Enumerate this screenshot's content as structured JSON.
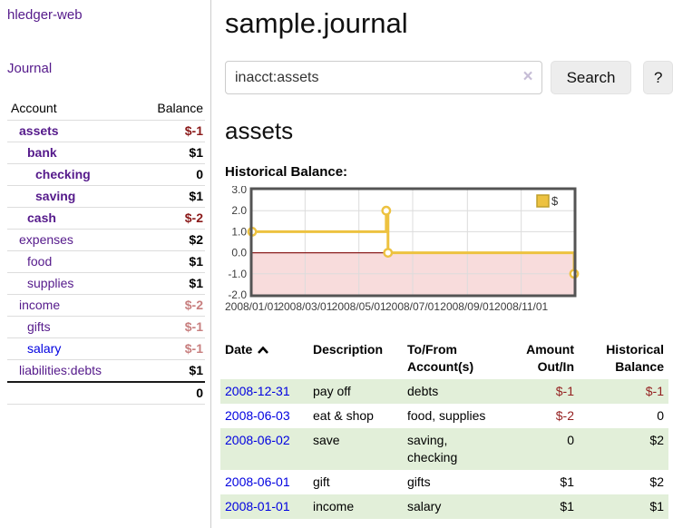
{
  "sidebar": {
    "app_title": "hledger-web",
    "nav_journal": "Journal",
    "accounts": {
      "headers": [
        "Account",
        "Balance"
      ],
      "rows": [
        {
          "name": "assets",
          "balance": "$-1",
          "indent": 0,
          "matched": true,
          "balance_style": "neg-strong",
          "link_style": "purple"
        },
        {
          "name": "bank",
          "balance": "$1",
          "indent": 1,
          "matched": true,
          "balance_style": "",
          "link_style": "purple"
        },
        {
          "name": "checking",
          "balance": "0",
          "indent": 2,
          "matched": true,
          "balance_style": "",
          "link_style": "purple"
        },
        {
          "name": "saving",
          "balance": "$1",
          "indent": 2,
          "matched": true,
          "balance_style": "",
          "link_style": "purple"
        },
        {
          "name": "cash",
          "balance": "$-2",
          "indent": 1,
          "matched": true,
          "balance_style": "neg-strong",
          "link_style": "purple"
        },
        {
          "name": "expenses",
          "balance": "$2",
          "indent": 0,
          "matched": false,
          "balance_style": "",
          "link_style": "purple"
        },
        {
          "name": "food",
          "balance": "$1",
          "indent": 1,
          "matched": false,
          "balance_style": "",
          "link_style": "purple"
        },
        {
          "name": "supplies",
          "balance": "$1",
          "indent": 1,
          "matched": false,
          "balance_style": "",
          "link_style": "purple"
        },
        {
          "name": "income",
          "balance": "$-2",
          "indent": 0,
          "matched": false,
          "balance_style": "neg-faded",
          "link_style": "purple"
        },
        {
          "name": "gifts",
          "balance": "$-1",
          "indent": 1,
          "matched": false,
          "balance_style": "neg-faded",
          "link_style": "purple"
        },
        {
          "name": "salary",
          "balance": "$-1",
          "indent": 1,
          "matched": false,
          "balance_style": "neg-faded",
          "link_style": "blue"
        },
        {
          "name": "liabilities:debts",
          "balance": "$1",
          "indent": 0,
          "matched": false,
          "balance_style": "",
          "link_style": "purple"
        }
      ],
      "total": "0"
    }
  },
  "header": {
    "title": "sample.journal"
  },
  "search": {
    "value": "inacct:assets",
    "clear_icon": "×",
    "button_label": "Search",
    "help_label": "?"
  },
  "account_page": {
    "heading": "assets",
    "chart_label": "Historical Balance:"
  },
  "chart_data": {
    "type": "line",
    "step": true,
    "title": "Historical Balance",
    "legend": {
      "label": "$",
      "position": "top-right"
    },
    "x_range": [
      "2008-01-01",
      "2008-12-31"
    ],
    "ylim": [
      -2.0,
      3.0
    ],
    "yticks": [
      "3.0",
      "2.0",
      "1.0",
      "0.0",
      "-1.0",
      "-2.0"
    ],
    "xticks": [
      {
        "label": "2008/01/01",
        "date": "2008-01-01"
      },
      {
        "label": "2008/03/01",
        "date": "2008-03-01"
      },
      {
        "label": "2008/05/01",
        "date": "2008-05-01"
      },
      {
        "label": "2008/07/01",
        "date": "2008-07-01"
      },
      {
        "label": "2008/09/01",
        "date": "2008-09-01"
      },
      {
        "label": "2008/11/01",
        "date": "2008-11-01"
      }
    ],
    "series": [
      {
        "name": "$",
        "color": "#edc240",
        "points": [
          {
            "date": "2008-01-01",
            "value": 1
          },
          {
            "date": "2008-06-01",
            "value": 2
          },
          {
            "date": "2008-06-03",
            "value": 0
          },
          {
            "date": "2008-12-31",
            "value": -1
          }
        ]
      }
    ],
    "colors": {
      "line": "#edc240",
      "marker_fill": "#ffffff",
      "legend_swatch_border": "#bf9f2c",
      "negative_region": "#f8dcdc",
      "zero_line": "#8b1f1f",
      "grid": "#dcdcdc",
      "border": "#545454",
      "tick_text": "#3c3c3c"
    }
  },
  "register": {
    "columns": [
      {
        "label": "Date",
        "align": "left",
        "sorted": "asc"
      },
      {
        "label": "Description",
        "align": "left"
      },
      {
        "label": "To/From Account(s)",
        "align": "left"
      },
      {
        "label": "Amount Out/In",
        "align": "right"
      },
      {
        "label": "Historical Balance",
        "align": "right"
      }
    ],
    "rows": [
      {
        "date": "2008-12-31",
        "description": "pay off",
        "accounts": "debts",
        "amount": "$-1",
        "balance": "$-1"
      },
      {
        "date": "2008-06-03",
        "description": "eat & shop",
        "accounts": "food, supplies",
        "amount": "$-2",
        "balance": "0"
      },
      {
        "date": "2008-06-02",
        "description": "save",
        "accounts": "saving, checking",
        "amount": "0",
        "balance": "$2"
      },
      {
        "date": "2008-06-01",
        "description": "gift",
        "accounts": "gifts",
        "amount": "$1",
        "balance": "$2"
      },
      {
        "date": "2008-01-01",
        "description": "income",
        "accounts": "salary",
        "amount": "$1",
        "balance": "$1"
      }
    ]
  }
}
